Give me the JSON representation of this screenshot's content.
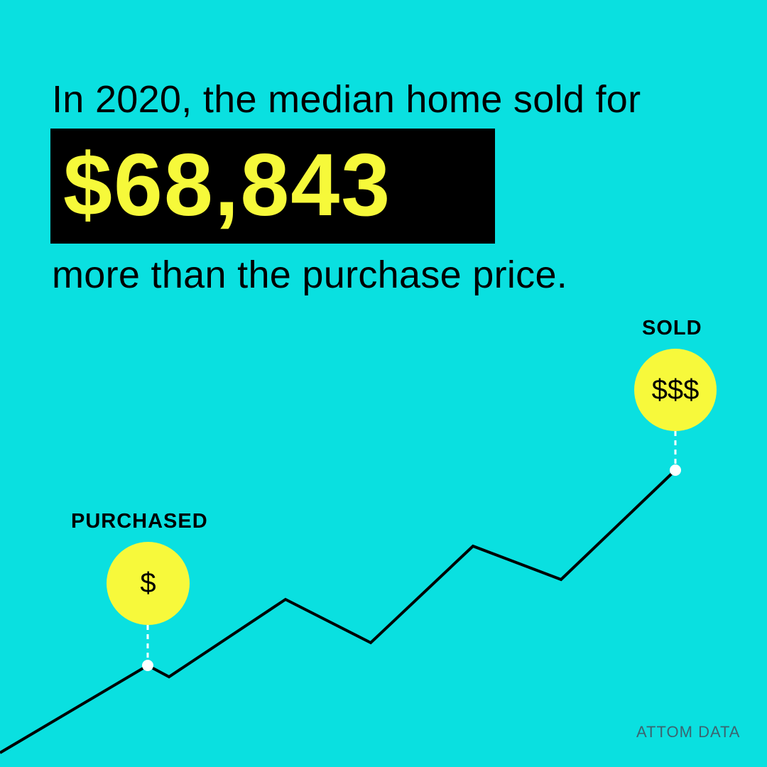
{
  "headline": {
    "line1": "In 2020, the median home sold for",
    "amount": "$68,843",
    "line2": "more than the purchase price."
  },
  "markers": {
    "purchased": {
      "label": "PURCHASED",
      "symbol": "$"
    },
    "sold": {
      "label": "SOLD",
      "symbol": "$$$"
    }
  },
  "brand": "ATTOM DATA",
  "colors": {
    "background": "#0ae0e0",
    "accent_yellow": "#f7f93b",
    "box": "#000000",
    "brand_text": "#3b6470"
  }
}
